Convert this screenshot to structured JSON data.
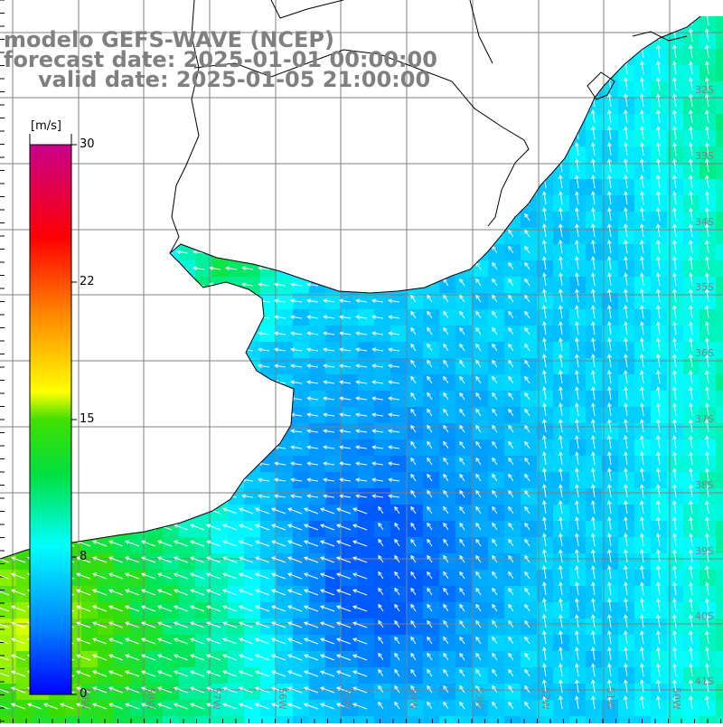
{
  "title": {
    "line1": "modelo GEFS-WAVE (NCEP)",
    "line2": "forecast date: 2025-01-01 00:00:00",
    "line3": "valid date: 2025-01-05 21:00:00"
  },
  "colorbar": {
    "unit": "[m/s]",
    "ticks": [
      "30",
      "22",
      "15",
      "8",
      "0"
    ],
    "tick_values": [
      30,
      22,
      15,
      8,
      0
    ],
    "min": 0,
    "max": 30,
    "colors": [
      "#0000ff",
      "#00a0ff",
      "#00ffff",
      "#00ff00",
      "#ffff00",
      "#ff8000",
      "#ff0000",
      "#c0008c"
    ]
  },
  "map": {
    "lat_labels": [
      "32S",
      "33S",
      "34S",
      "35S",
      "36S",
      "37S",
      "38S",
      "39S",
      "40S",
      "41S"
    ],
    "lon_labels": [
      "59W",
      "58W",
      "57W",
      "56W",
      "55W",
      "54W",
      "53W",
      "52W",
      "51W",
      "50W"
    ],
    "field": "wind speed and direction",
    "coast_color": "#000000",
    "grid_color": "#808080"
  }
}
